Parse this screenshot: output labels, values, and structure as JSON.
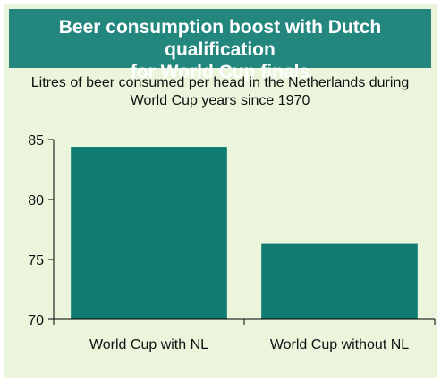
{
  "header": {
    "title_line1": "Beer consumption boost with Dutch qualification",
    "title_line2": "for World Cup finals",
    "subtitle_line1": "Litres of beer consumed per head in the Netherlands during",
    "subtitle_line2": "World Cup years since 1970"
  },
  "colors": {
    "banner": "#24877e",
    "bar": "#117d72",
    "background": "#eaf5dc"
  },
  "chart_data": {
    "type": "bar",
    "title": "Beer consumption boost with Dutch qualification for World Cup finals",
    "subtitle": "Litres of beer consumed per head in the Netherlands during World Cup years since 1970",
    "categories": [
      "World Cup with NL",
      "World Cup without NL"
    ],
    "values": [
      84.4,
      76.3
    ],
    "xlabel": "",
    "ylabel": "",
    "ylim": [
      70,
      85
    ],
    "yticks": [
      "70",
      "75",
      "80",
      "85"
    ],
    "grid": false,
    "legend": "none"
  }
}
